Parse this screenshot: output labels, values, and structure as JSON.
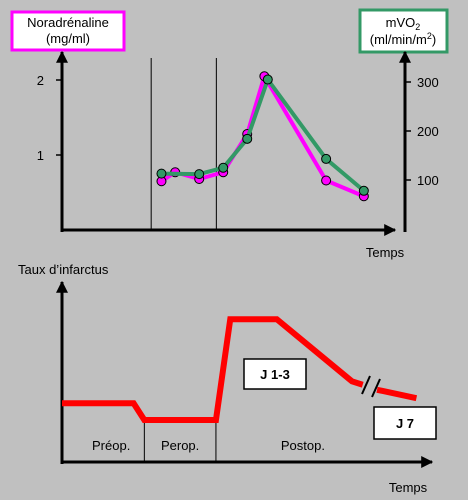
{
  "colors": {
    "background": "#c0c0c0",
    "noradrenaline": "#ff00ff",
    "mvo2": "#339966",
    "infarct": "#ff0000",
    "axis": "#000000",
    "box_fill": "#ffffff"
  },
  "chart_data": [
    {
      "type": "line",
      "left_label_box": {
        "line1": "Noradrénaline",
        "line2": "(mg/ml)"
      },
      "right_label_box": {
        "line1_main": "mVO",
        "line1_sub": "2",
        "line2_main": "(ml/min/m",
        "line2_sup": "2",
        "line2_end": ")"
      },
      "xlabel": "Temps",
      "y_left": {
        "ticks": [
          1,
          2
        ],
        "tick_labels": [
          "1",
          "2"
        ],
        "range": [
          0,
          2.4
        ]
      },
      "y_right": {
        "ticks": [
          100,
          200,
          300
        ],
        "tick_labels": [
          "100",
          "200",
          "300"
        ],
        "range": [
          0,
          330
        ]
      },
      "grid": false,
      "x_range": [
        0,
        100
      ],
      "phase_dividers_x": [
        26,
        45
      ],
      "series": [
        {
          "axis": "left",
          "color": "#ff00ff",
          "points": [
            {
              "x": 29,
              "y": 0.65
            },
            {
              "x": 33,
              "y": 0.77
            },
            {
              "x": 40,
              "y": 0.68
            },
            {
              "x": 47,
              "y": 0.77
            },
            {
              "x": 54,
              "y": 1.28
            },
            {
              "x": 59,
              "y": 2.05
            },
            {
              "x": 77,
              "y": 0.66
            },
            {
              "x": 88,
              "y": 0.45
            }
          ]
        },
        {
          "axis": "right",
          "color": "#339966",
          "points": [
            {
              "x": 29,
              "y": 113
            },
            {
              "x": 40,
              "y": 112
            },
            {
              "x": 47,
              "y": 125
            },
            {
              "x": 54,
              "y": 184
            },
            {
              "x": 60,
              "y": 305
            },
            {
              "x": 77,
              "y": 143
            },
            {
              "x": 88,
              "y": 78
            }
          ]
        }
      ]
    },
    {
      "type": "line",
      "ylabel": "Taux d’infarctus",
      "xlabel": "Temps",
      "grid": false,
      "x_range": [
        0,
        100
      ],
      "y_range": [
        0,
        100
      ],
      "phase_dividers_x": [
        23,
        43
      ],
      "phases": [
        "Préop.",
        "Perop.",
        "Postop."
      ],
      "series": [
        {
          "color": "#ff0000",
          "points": [
            {
              "x": 0,
              "y": 35
            },
            {
              "x": 20,
              "y": 35
            },
            {
              "x": 23,
              "y": 25
            },
            {
              "x": 43,
              "y": 25
            },
            {
              "x": 47,
              "y": 85
            },
            {
              "x": 60,
              "y": 85
            },
            {
              "x": 81,
              "y": 48
            },
            {
              "x": 84,
              "y": 46
            }
          ]
        },
        {
          "color": "#ff0000",
          "points": [
            {
              "x": 88,
              "y": 43
            },
            {
              "x": 99,
              "y": 38
            }
          ]
        }
      ],
      "annotations": [
        "J 1-3",
        "J 7"
      ]
    }
  ]
}
